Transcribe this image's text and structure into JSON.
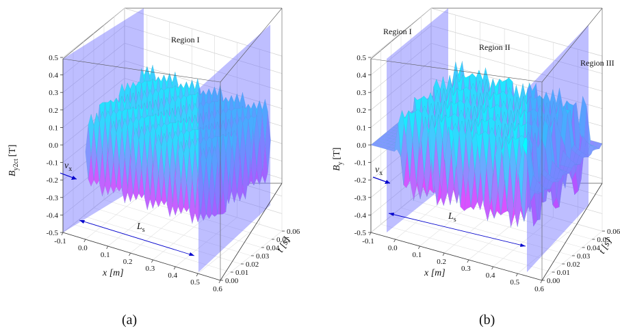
{
  "chart_data": [
    {
      "type": "surface",
      "caption": "(a)",
      "xlabel": "x [m]",
      "ylabel_main": "B",
      "ylabel_sub": "y2ct",
      "ylabel_unit": "[T]",
      "tlabel": "t [s]",
      "x_ticks": [
        "-0.1",
        "0.0",
        "0.1",
        "0.2",
        "0.3",
        "0.4",
        "0.5",
        "0.6"
      ],
      "z_ticks": [
        "0.5",
        "0.4",
        "0.3",
        "0.2",
        "0.1",
        "0.0",
        "-0.1",
        "-0.2",
        "-0.3",
        "-0.4",
        "-0.5"
      ],
      "t_ticks": [
        "0.00",
        "0.01",
        "0.02",
        "0.03",
        "0.04",
        "0.05",
        "0.06"
      ],
      "xlim": [
        -0.1,
        0.6
      ],
      "zlim": [
        -0.5,
        0.5
      ],
      "tlim": [
        0.0,
        0.06
      ],
      "velocity_label": "v",
      "velocity_sub": "x",
      "length_label": "L",
      "length_sub": "s",
      "regions": [
        "Region I"
      ],
      "amplitude": 0.25,
      "colors": {
        "high": "#00ffff",
        "low": "#ff33ff",
        "plane": "#6f6fff"
      }
    },
    {
      "type": "surface",
      "caption": "(b)",
      "xlabel": "x [m]",
      "ylabel_main": "B",
      "ylabel_sub": "y",
      "ylabel_unit": "[T]",
      "tlabel": "t [s]",
      "x_ticks": [
        "-0.1",
        "0.0",
        "0.1",
        "0.2",
        "0.3",
        "0.4",
        "0.5",
        "0.6"
      ],
      "z_ticks": [
        "0.5",
        "0.4",
        "0.3",
        "0.2",
        "0.1",
        "0.0",
        "-0.1",
        "-0.2",
        "-0.3",
        "-0.4",
        "-0.5"
      ],
      "t_ticks": [
        "0.00",
        "0.01",
        "0.02",
        "0.03",
        "0.04",
        "0.05",
        "0.06"
      ],
      "xlim": [
        -0.1,
        0.6
      ],
      "zlim": [
        -0.5,
        0.5
      ],
      "tlim": [
        0.0,
        0.06
      ],
      "velocity_label": "v",
      "velocity_sub": "x",
      "length_label": "L",
      "length_sub": "s",
      "regions": [
        "Region I",
        "Region II",
        "Region III"
      ],
      "amplitude": 0.25,
      "colors": {
        "high": "#00ffff",
        "low": "#ff33ff",
        "plane": "#6f6fff"
      }
    }
  ]
}
